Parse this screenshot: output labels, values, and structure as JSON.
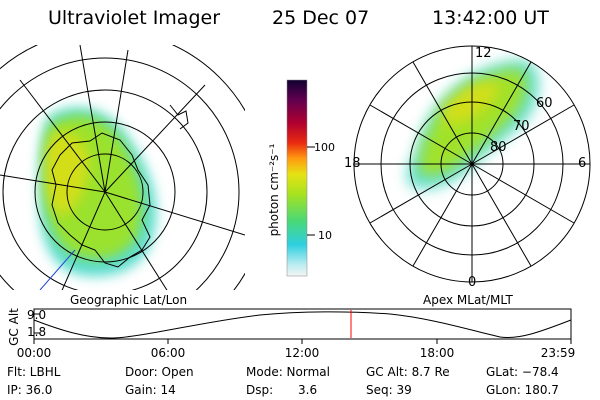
{
  "header": {
    "instrument": "Ultraviolet Imager",
    "date": "25 Dec 07",
    "time": "13:42:00 UT"
  },
  "panels": {
    "left_label": "Geographic Lat/Lon",
    "right_label": "Apex MLat/MLT"
  },
  "right_map": {
    "clock_labels": {
      "top": "12",
      "left": "18",
      "right": "6",
      "bottom": "0"
    },
    "latitude_labels": [
      "60",
      "70",
      "80"
    ]
  },
  "colorbar": {
    "unit_label": "photon cm⁻²s⁻¹",
    "ticks": [
      "100",
      "10"
    ]
  },
  "altitude_strip": {
    "axis_label": "GC Alt",
    "y_ticks": [
      "9.0",
      "1.8"
    ],
    "time_ticks": [
      "00:00",
      "06:00",
      "12:00",
      "18:00",
      "23:59"
    ],
    "current_marker_time": "13:42"
  },
  "info": {
    "filter": "Flt: LBHL",
    "ip": "IP: 36.0",
    "door": "Door: Open",
    "gain": "Gain: 14",
    "mode": "Mode: Normal",
    "dsp_label": "Dsp:",
    "dsp_value": "3.6",
    "gc_alt": "GC Alt: 8.7 Re",
    "seq": "Seq: 39",
    "glat": "GLat: −78.4",
    "glon": "GLon: 180.7"
  },
  "colors": {
    "marker": "#ff0000",
    "aurora_green": "#99e32a",
    "aurora_yellow": "#dede17",
    "aurora_cyan": "#3fd7cf"
  }
}
